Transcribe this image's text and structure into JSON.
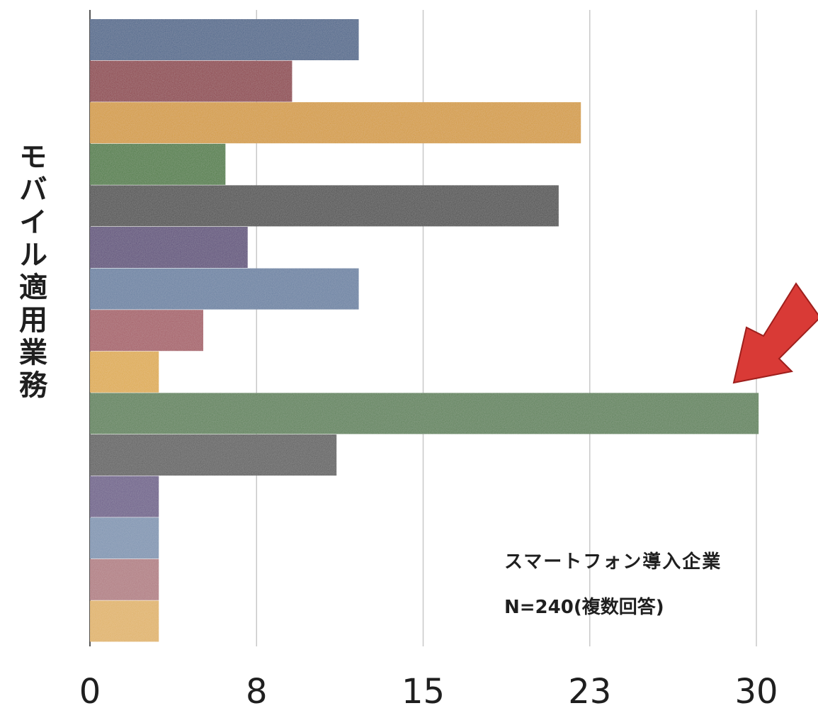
{
  "chart_data": {
    "type": "bar",
    "orientation": "horizontal",
    "ylabel": "モバイル適用業務",
    "xlim": [
      0,
      30
    ],
    "x_ticks": [
      "0",
      "8",
      "15",
      "23",
      "30"
    ],
    "x_tick_values": [
      0,
      7.5,
      15,
      22.5,
      30
    ],
    "grid": true,
    "annotation_lines": [
      "スマートフォン導入企業",
      "N=240(複数回答)"
    ],
    "values": [
      12.1,
      9.1,
      22.1,
      6.1,
      21.1,
      7.1,
      12.1,
      5.1,
      3.1,
      30.1,
      11.1,
      3.1,
      3.1,
      3.1,
      3.1
    ],
    "bar_colors": [
      "#4a6489",
      "#8b3b45",
      "#d39a35",
      "#4a7a3c",
      "#4a4a4a",
      "#5a4878",
      "#667fa1",
      "#a45a63",
      "#deaa4a",
      "#5a8054",
      "#5b5b5b",
      "#6b5b88",
      "#7d93b0",
      "#b07a80",
      "#e0b265"
    ],
    "highlight_arrow": {
      "color": "#d93a36",
      "target_index": 9
    }
  }
}
